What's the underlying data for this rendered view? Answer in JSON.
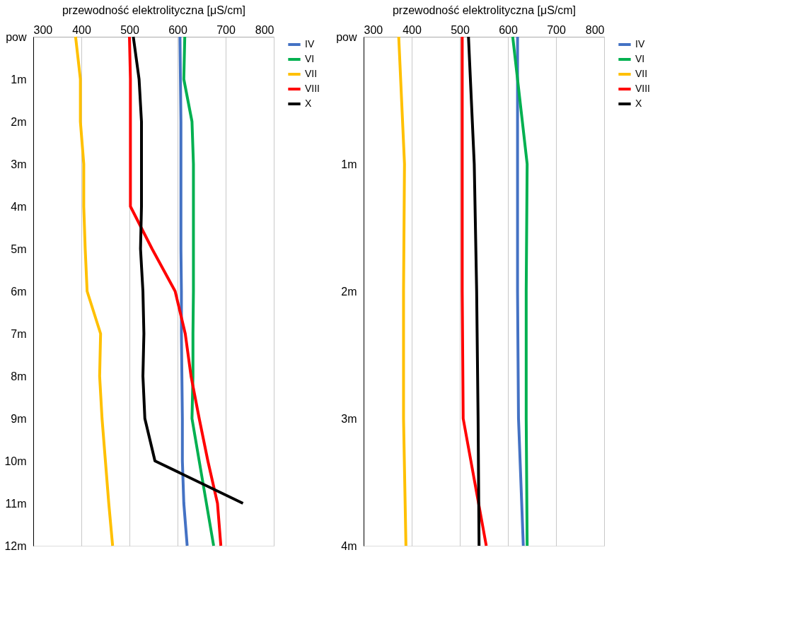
{
  "chart_data": [
    {
      "type": "line",
      "orientation": "horizontal",
      "xlabel": "przewodność elektrolityczna [μS/cm]",
      "categories": [
        "pow",
        "1m",
        "2m",
        "3m",
        "4m",
        "5m",
        "6m",
        "7m",
        "8m",
        "9m",
        "10m",
        "11m",
        "12m"
      ],
      "xlim": [
        300,
        800
      ],
      "xticks": [
        300,
        400,
        500,
        600,
        700,
        800
      ],
      "grid": "x",
      "legend": "right",
      "line_style": "solid",
      "marker": "none",
      "series": [
        {
          "name": "IV",
          "color": "#4472c4",
          "values": [
            605,
            606,
            607,
            607,
            607,
            607,
            608,
            608,
            609,
            610,
            610,
            613,
            620
          ]
        },
        {
          "name": "VI",
          "color": "#00b050",
          "values": [
            615,
            613,
            630,
            633,
            633,
            633,
            633,
            632,
            632,
            630,
            645,
            660,
            675
          ]
        },
        {
          "name": "VII",
          "color": "#ffc000",
          "values": [
            388,
            398,
            398,
            405,
            405,
            408,
            412,
            440,
            438,
            443,
            450,
            457,
            465
          ]
        },
        {
          "name": "VIII",
          "color": "#ff0000",
          "values": [
            500,
            502,
            502,
            502,
            502,
            547,
            595,
            616,
            628,
            645,
            663,
            683,
            690
          ]
        },
        {
          "name": "X",
          "color": "#000000",
          "values": [
            508,
            520,
            525,
            525,
            525,
            523,
            528,
            530,
            528,
            532,
            553,
            736,
            null
          ]
        }
      ]
    },
    {
      "type": "line",
      "orientation": "horizontal",
      "xlabel": "przewodność elektrolityczna [μS/cm]",
      "categories": [
        "pow",
        "1m",
        "2m",
        "3m",
        "4m"
      ],
      "xlim": [
        300,
        800
      ],
      "xticks": [
        300,
        400,
        500,
        600,
        700,
        800
      ],
      "grid": "x",
      "legend": "right",
      "line_style": "solid",
      "marker": "none",
      "series": [
        {
          "name": "IV",
          "color": "#4472c4",
          "values": [
            620,
            620,
            620,
            622,
            632
          ]
        },
        {
          "name": "VI",
          "color": "#00b050",
          "values": [
            610,
            640,
            638,
            638,
            640
          ]
        },
        {
          "name": "VII",
          "color": "#ffc000",
          "values": [
            373,
            385,
            383,
            383,
            388
          ]
        },
        {
          "name": "VIII",
          "color": "#ff0000",
          "values": [
            505,
            505,
            505,
            507,
            555
          ]
        },
        {
          "name": "X",
          "color": "#000000",
          "values": [
            518,
            530,
            535,
            538,
            540
          ]
        }
      ]
    }
  ]
}
